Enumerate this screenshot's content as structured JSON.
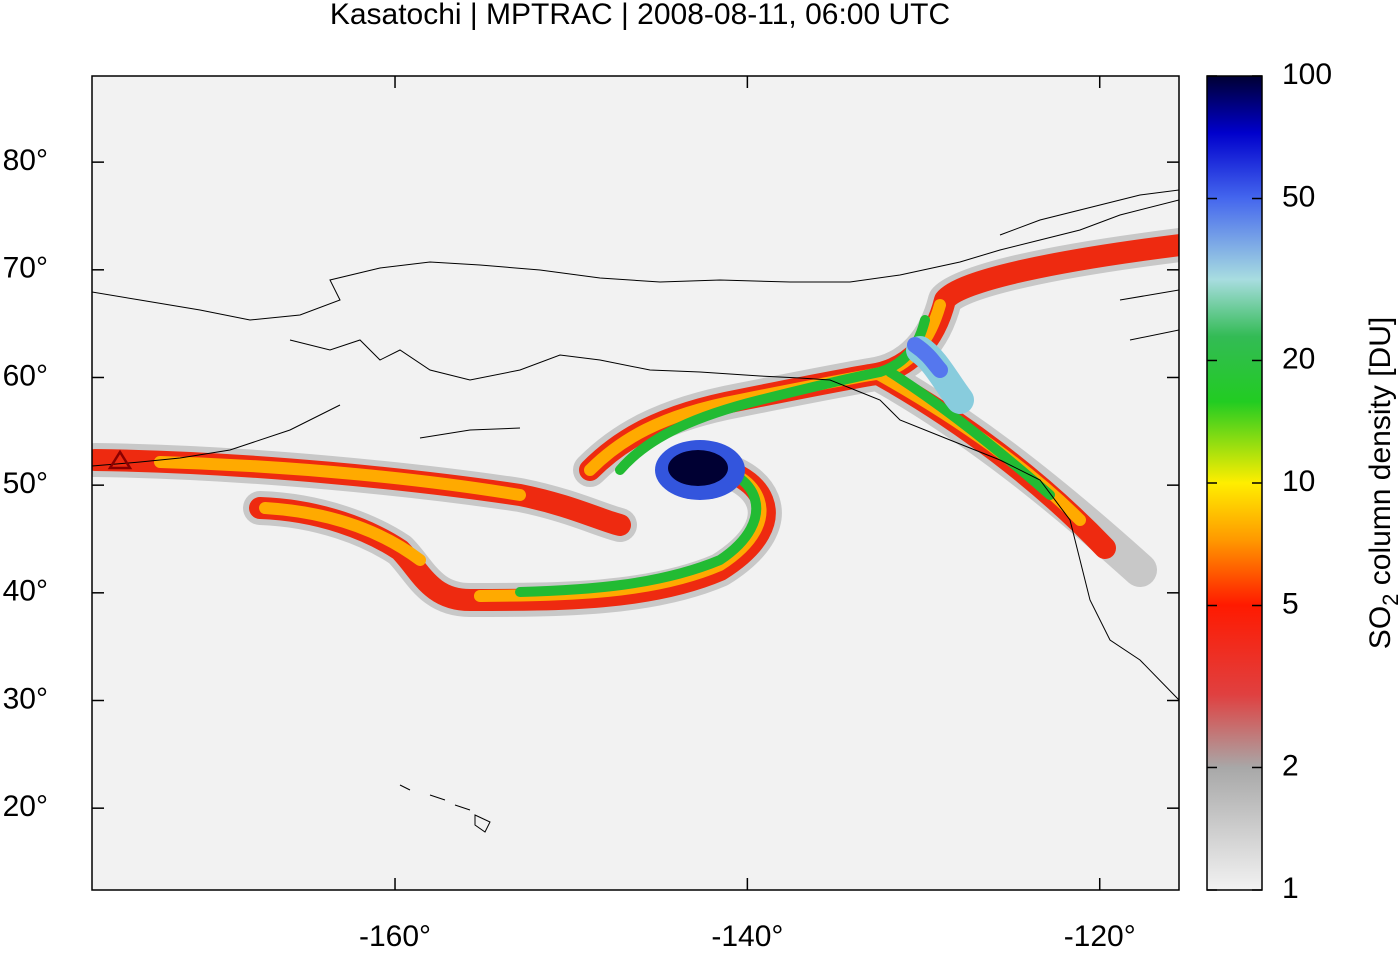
{
  "title": "Kasatochi | MPTRAC | 2008-08-11, 06:00 UTC",
  "map": {
    "xlim": [
      -177.2,
      -115.5
    ],
    "ylim": [
      12.4,
      88
    ],
    "xticks": [
      {
        "value": -160,
        "label": "-160°"
      },
      {
        "value": -140,
        "label": "-140°"
      },
      {
        "value": -120,
        "label": "-120°"
      }
    ],
    "yticks": [
      {
        "value": 20,
        "label": "20°"
      },
      {
        "value": 30,
        "label": "30°"
      },
      {
        "value": 40,
        "label": "40°"
      },
      {
        "value": 50,
        "label": "50°"
      },
      {
        "value": 60,
        "label": "60°"
      },
      {
        "value": 70,
        "label": "70°"
      },
      {
        "value": 80,
        "label": "80°"
      }
    ]
  },
  "colorbar": {
    "label": [
      "SO",
      "2",
      " column density [DU]"
    ],
    "scale": "log",
    "lim": [
      1,
      100
    ],
    "ticks": [
      1,
      2,
      5,
      10,
      20,
      50,
      100
    ]
  }
}
